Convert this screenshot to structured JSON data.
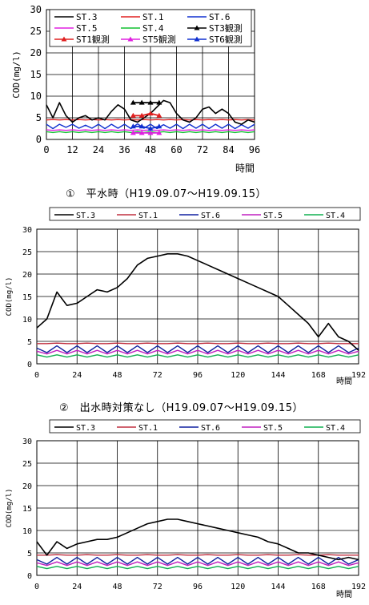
{
  "captions": [
    "①　平水時（H19.09.07～H19.09.15）",
    "②　出水時対策なし（H19.09.07～H19.09.15）"
  ],
  "chart_data": [
    {
      "type": "line",
      "title": "",
      "ylabel": "COD(mg/l)",
      "xlabel": "時間",
      "ylim": [
        0,
        30
      ],
      "xlim": [
        0,
        96
      ],
      "yticks": [
        0,
        5,
        10,
        15,
        20,
        25,
        30
      ],
      "xticks": [
        0,
        12,
        24,
        36,
        48,
        60,
        72,
        84,
        96
      ],
      "grid": true,
      "legend_position": "top",
      "x": [
        0,
        3,
        6,
        9,
        12,
        15,
        18,
        21,
        24,
        27,
        30,
        33,
        36,
        39,
        42,
        45,
        48,
        51,
        54,
        57,
        60,
        63,
        66,
        69,
        72,
        75,
        78,
        81,
        84,
        87,
        90,
        93,
        96
      ],
      "series": [
        {
          "name": "ST.3",
          "color": "#000000",
          "values": [
            8,
            5,
            8.5,
            5.5,
            4,
            5,
            5.5,
            4.5,
            5,
            4.5,
            6.5,
            8,
            7,
            4.5,
            4,
            5,
            6,
            7.5,
            9,
            8.5,
            6,
            4.5,
            4,
            5,
            7,
            7.5,
            6,
            7,
            6,
            4,
            3.5,
            4.5,
            4
          ]
        },
        {
          "name": "ST.1",
          "color": "#e02020",
          "values": [
            4.5,
            4.6,
            4.5,
            4.6,
            4.5,
            4.6,
            4.5,
            4.6,
            4.5,
            4.6,
            4.5,
            4.6,
            4.5,
            4.6,
            4.5,
            4.6,
            4.5,
            4.6,
            4.5,
            4.6,
            4.5,
            4.6,
            4.5,
            4.6,
            4.5,
            4.6,
            4.5,
            4.6,
            4.5,
            4.6,
            4.5,
            4.6,
            4.5
          ]
        },
        {
          "name": "ST.6",
          "color": "#1030d0",
          "values": [
            3.5,
            2.5,
            3.5,
            2.8,
            3.5,
            2.6,
            3.3,
            2.6,
            3.5,
            2.5,
            3.5,
            2.6,
            3.5,
            2.5,
            3.6,
            2.6,
            3.5,
            2.5,
            3.4,
            2.6,
            3.5,
            2.5,
            3.5,
            2.6,
            3.5,
            2.5,
            3.5,
            2.6,
            3.5,
            2.5,
            3.4,
            2.6,
            3.5
          ]
        },
        {
          "name": "ST.5",
          "color": "#e020e0",
          "values": [
            2.2,
            2.1,
            2.2,
            2.1,
            2.2,
            2.1,
            2.2,
            2.1,
            2.2,
            2.1,
            2.2,
            2.1,
            2.2,
            2.1,
            2.2,
            2.1,
            2.2,
            2.1,
            2.2,
            2.1,
            2.2,
            2.1,
            2.2,
            2.1,
            2.2,
            2.1,
            2.2,
            2.1,
            2.2,
            2.1,
            2.2,
            2.1,
            2.2
          ]
        },
        {
          "name": "ST.4",
          "color": "#10c030",
          "values": [
            1.8,
            1.6,
            1.8,
            1.6,
            1.8,
            1.6,
            1.8,
            1.6,
            1.8,
            1.6,
            1.8,
            1.6,
            1.8,
            1.6,
            1.8,
            1.6,
            1.8,
            1.6,
            1.8,
            1.6,
            1.8,
            1.6,
            1.8,
            1.6,
            1.8,
            1.6,
            1.8,
            1.6,
            1.8,
            1.6,
            1.8,
            1.6,
            1.8
          ]
        }
      ],
      "observations": [
        {
          "name": "ST3観測",
          "color": "#000000",
          "x": [
            40,
            44,
            48,
            52
          ],
          "values": [
            8.5,
            8.5,
            8.5,
            8.5
          ]
        },
        {
          "name": "ST1観測",
          "color": "#e02020",
          "x": [
            40,
            44,
            48,
            52
          ],
          "values": [
            5.5,
            5.5,
            6,
            5.5
          ]
        },
        {
          "name": "ST5観測",
          "color": "#e020e0",
          "x": [
            40,
            44,
            48,
            52
          ],
          "values": [
            1.5,
            1.5,
            1.5,
            1.5
          ]
        },
        {
          "name": "ST6観測",
          "color": "#1030d0",
          "x": [
            40,
            44,
            48,
            52
          ],
          "values": [
            3,
            3,
            2.5,
            3
          ]
        }
      ]
    },
    {
      "type": "line",
      "title": "",
      "ylabel": "COD(mg/l)",
      "xlabel": "時間",
      "ylim": [
        0,
        30
      ],
      "xlim": [
        0,
        192
      ],
      "yticks": [
        0,
        5,
        10,
        15,
        20,
        25,
        30
      ],
      "xticks": [
        0,
        24,
        48,
        72,
        96,
        120,
        144,
        168,
        192
      ],
      "grid": true,
      "legend_position": "top",
      "x": [
        0,
        6,
        12,
        18,
        24,
        30,
        36,
        42,
        48,
        54,
        60,
        66,
        72,
        78,
        84,
        90,
        96,
        102,
        108,
        114,
        120,
        126,
        132,
        138,
        144,
        150,
        156,
        162,
        168,
        174,
        180,
        186,
        192
      ],
      "series": [
        {
          "name": "ST.3",
          "color": "#000000",
          "values": [
            8,
            10,
            16,
            13,
            13.5,
            15,
            16.5,
            16,
            17,
            19,
            22,
            23.5,
            24,
            24.5,
            24.5,
            24,
            23,
            22,
            21,
            20,
            19,
            18,
            17,
            16,
            15,
            13,
            11,
            9,
            6,
            9,
            6,
            5,
            3
          ]
        },
        {
          "name": "ST.1",
          "color": "#c03040",
          "values": [
            4.5,
            4.5,
            4.6,
            4.5,
            4.5,
            4.6,
            4.5,
            4.5,
            4.6,
            4.5,
            4.5,
            4.6,
            4.5,
            4.5,
            4.6,
            4.5,
            4.5,
            4.6,
            4.5,
            4.5,
            4.6,
            4.5,
            4.5,
            4.6,
            4.5,
            4.5,
            4.6,
            4.5,
            4.5,
            4.6,
            4.5,
            4.5,
            4.5
          ]
        },
        {
          "name": "ST.6",
          "color": "#1020a0",
          "values": [
            3.5,
            2.5,
            4,
            2.5,
            4,
            2.5,
            4,
            2.5,
            4,
            2.5,
            4,
            2.5,
            4,
            2.5,
            4,
            2.5,
            4,
            2.5,
            4,
            2.5,
            4,
            2.5,
            4,
            2.5,
            4,
            2.5,
            4,
            2.5,
            4,
            2.5,
            4,
            2.5,
            3.5
          ]
        },
        {
          "name": "ST.5",
          "color": "#c020c0",
          "values": [
            2.8,
            2.2,
            3,
            2.2,
            3,
            2.2,
            3,
            2.2,
            3,
            2.2,
            3,
            2.2,
            3,
            2.2,
            3,
            2.2,
            3,
            2.2,
            3,
            2.2,
            3,
            2.2,
            3,
            2.2,
            3,
            2.2,
            3,
            2.2,
            3,
            2.2,
            3,
            2.2,
            2.8
          ]
        },
        {
          "name": "ST.4",
          "color": "#10b050",
          "values": [
            2,
            1.5,
            2,
            1.5,
            2,
            1.5,
            2,
            1.5,
            2,
            1.5,
            2,
            1.5,
            2,
            1.5,
            2,
            1.5,
            2,
            1.5,
            2,
            1.5,
            2,
            1.5,
            2,
            1.5,
            2,
            1.5,
            2,
            1.5,
            2,
            1.5,
            2,
            1.5,
            2
          ]
        }
      ]
    },
    {
      "type": "line",
      "title": "",
      "ylabel": "COD(mg/l)",
      "xlabel": "時間",
      "ylim": [
        0,
        30
      ],
      "xlim": [
        0,
        192
      ],
      "yticks": [
        0,
        5,
        10,
        15,
        20,
        25,
        30
      ],
      "xticks": [
        0,
        24,
        48,
        72,
        96,
        120,
        144,
        168,
        192
      ],
      "grid": true,
      "legend_position": "top",
      "x": [
        0,
        6,
        12,
        18,
        24,
        30,
        36,
        42,
        48,
        54,
        60,
        66,
        72,
        78,
        84,
        90,
        96,
        102,
        108,
        114,
        120,
        126,
        132,
        138,
        144,
        150,
        156,
        162,
        168,
        174,
        180,
        186,
        192
      ],
      "series": [
        {
          "name": "ST.3",
          "color": "#000000",
          "values": [
            7.5,
            4.5,
            7.5,
            6,
            7,
            7.5,
            8,
            8,
            8.5,
            9.5,
            10.5,
            11.5,
            12,
            12.5,
            12.5,
            12,
            11.5,
            11,
            10.5,
            10,
            9.5,
            9,
            8.5,
            7.5,
            7,
            6,
            5,
            5,
            4.5,
            4,
            3.5,
            4,
            3.5
          ]
        },
        {
          "name": "ST.1",
          "color": "#c03040",
          "values": [
            4.5,
            4.5,
            4.6,
            4.5,
            4.5,
            4.6,
            4.5,
            4.5,
            4.6,
            4.5,
            4.5,
            4.6,
            4.5,
            4.5,
            4.6,
            4.5,
            4.5,
            4.6,
            4.5,
            4.5,
            4.6,
            4.5,
            4.5,
            4.6,
            4.5,
            4.5,
            4.6,
            4.5,
            4.5,
            4.6,
            4.5,
            4.5,
            4.5
          ]
        },
        {
          "name": "ST.6",
          "color": "#1020a0",
          "values": [
            3.5,
            2.5,
            4,
            2.5,
            4,
            2.5,
            4,
            2.5,
            4,
            2.5,
            4,
            2.5,
            4,
            2.5,
            4,
            2.5,
            4,
            2.5,
            4,
            2.5,
            4,
            2.5,
            4,
            2.5,
            4,
            2.5,
            4,
            2.5,
            4,
            2.5,
            4,
            2.5,
            3.5
          ]
        },
        {
          "name": "ST.5",
          "color": "#c020c0",
          "values": [
            2.8,
            2.2,
            3,
            2.2,
            3,
            2.2,
            3,
            2.2,
            3,
            2.2,
            3,
            2.2,
            3,
            2.2,
            3,
            2.2,
            3,
            2.2,
            3,
            2.2,
            3,
            2.2,
            3,
            2.2,
            3,
            2.2,
            3,
            2.2,
            3,
            2.2,
            3,
            2.2,
            2.8
          ]
        },
        {
          "name": "ST.4",
          "color": "#10b050",
          "values": [
            2,
            1.5,
            2,
            1.5,
            2,
            1.5,
            2,
            1.5,
            2,
            1.5,
            2,
            1.5,
            2,
            1.5,
            2,
            1.5,
            2,
            1.5,
            2,
            1.5,
            2,
            1.5,
            2,
            1.5,
            2,
            1.5,
            2,
            1.5,
            2,
            1.5,
            2,
            1.5,
            2
          ]
        }
      ]
    }
  ]
}
